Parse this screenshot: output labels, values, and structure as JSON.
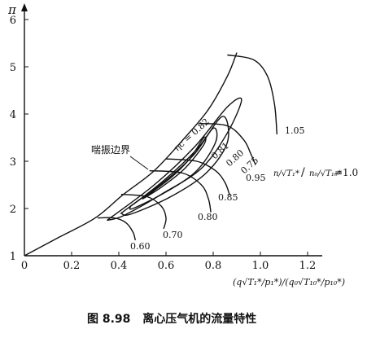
{
  "figure": {
    "caption_number": "图 8.98",
    "caption_text": "离心压气机的流量特性",
    "surge_label": "喘振边界",
    "y_axis_label": "π",
    "x_axis_label": "(q√T₁*/p₁*)/(q₀√T₁₀*/p₁₀*)",
    "speed_param_label_left": "n/√T₁*",
    "speed_param_label_right": "n₀/√T₁₀*",
    "speed_param_value": "=1.0",
    "x_ticks": [
      "0",
      "0.2",
      "0.4",
      "0.6",
      "0.8",
      "1.0",
      "1.2"
    ],
    "y_ticks": [
      "1",
      "2",
      "3",
      "4",
      "5",
      "6"
    ],
    "speed_line_labels": [
      "0.60",
      "0.70",
      "0.80",
      "0.85",
      "0.95",
      "1.05"
    ],
    "efficiency_labels": [
      "ηc = 0.82",
      "0.81",
      "0.80",
      "0.75"
    ]
  },
  "chart_data": {
    "type": "line",
    "xlabel": "(q√T₁*/p₁*)/(q₀√T₁₀*/p₁₀*)",
    "ylabel": "π",
    "xlim": [
      0,
      1.3
    ],
    "ylim": [
      1,
      6.5
    ],
    "grid": false,
    "surge_line": {
      "name": "喘振边界",
      "x": [
        0,
        0.15,
        0.3,
        0.42,
        0.55,
        0.68,
        0.78,
        0.86,
        0.9
      ],
      "y": [
        1.0,
        1.4,
        1.8,
        2.3,
        2.8,
        3.5,
        4.1,
        4.8,
        5.3
      ]
    },
    "speed_lines": [
      {
        "name": "0.60",
        "x": [
          0.31,
          0.38,
          0.43,
          0.46,
          0.47
        ],
        "y": [
          1.8,
          1.8,
          1.7,
          1.5,
          1.33
        ]
      },
      {
        "name": "0.70",
        "x": [
          0.41,
          0.52,
          0.58,
          0.6,
          0.59
        ],
        "y": [
          2.3,
          2.25,
          2.05,
          1.8,
          1.57
        ]
      },
      {
        "name": "0.80",
        "x": [
          0.53,
          0.67,
          0.75,
          0.78,
          0.79
        ],
        "y": [
          2.8,
          2.75,
          2.5,
          2.2,
          1.92
        ]
      },
      {
        "name": "0.85",
        "x": [
          0.6,
          0.73,
          0.81,
          0.85,
          0.87
        ],
        "y": [
          3.05,
          3.0,
          2.8,
          2.55,
          2.28
        ]
      },
      {
        "name": "0.95",
        "x": [
          0.74,
          0.86,
          0.93,
          0.96,
          0.98
        ],
        "y": [
          3.8,
          3.75,
          3.45,
          3.15,
          2.92
        ]
      },
      {
        "name": "1.05",
        "x": [
          0.86,
          0.97,
          1.03,
          1.06,
          1.07
        ],
        "y": [
          5.25,
          5.15,
          4.8,
          4.2,
          3.57
        ]
      }
    ],
    "efficiency_islands": [
      {
        "name": "ηc = 0.82",
        "x": [
          0.5,
          0.62,
          0.7,
          0.76,
          0.76,
          0.68,
          0.58,
          0.5
        ],
        "y": [
          2.2,
          2.65,
          3.05,
          3.5,
          3.35,
          2.85,
          2.45,
          2.2
        ]
      },
      {
        "name": "0.81",
        "x": [
          0.45,
          0.6,
          0.72,
          0.8,
          0.81,
          0.73,
          0.6,
          0.46,
          0.45
        ],
        "y": [
          2.05,
          2.6,
          3.15,
          3.7,
          3.4,
          2.8,
          2.35,
          2.0,
          2.05
        ]
      },
      {
        "name": "0.80",
        "x": [
          0.41,
          0.58,
          0.73,
          0.84,
          0.86,
          0.77,
          0.62,
          0.45,
          0.41
        ],
        "y": [
          1.9,
          2.55,
          3.25,
          3.95,
          3.4,
          2.75,
          2.25,
          1.88,
          1.9
        ]
      },
      {
        "name": "0.75",
        "x": [
          0.35,
          0.55,
          0.72,
          0.86,
          0.92,
          0.86,
          0.75,
          0.58,
          0.42,
          0.35
        ],
        "y": [
          1.75,
          2.5,
          3.3,
          4.15,
          4.3,
          3.6,
          2.85,
          2.3,
          1.85,
          1.75
        ]
      }
    ]
  }
}
